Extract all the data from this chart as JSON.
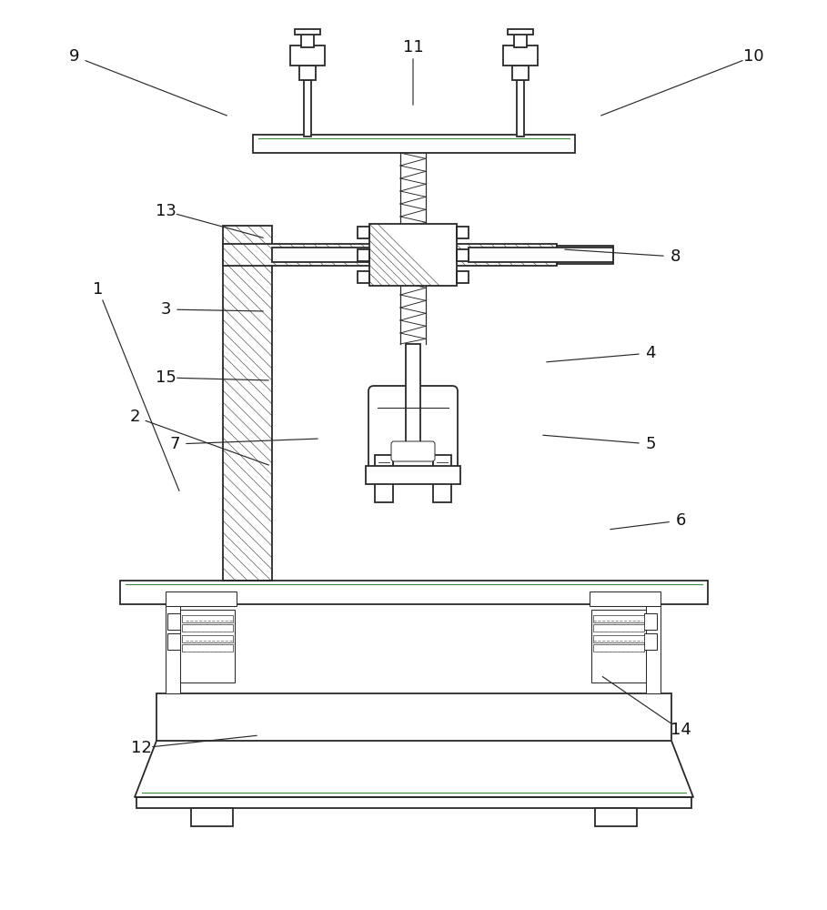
{
  "bg": "#ffffff",
  "lc": "#2a2a2a",
  "gc": "#3a8a3a",
  "lw": 1.3,
  "tlw": 0.75,
  "hlw": 0.55,
  "label_fs": 13,
  "annotations": [
    [
      "9",
      82,
      62,
      252,
      128
    ],
    [
      "10",
      828,
      62,
      658,
      128
    ],
    [
      "11",
      454,
      52,
      454,
      118
    ],
    [
      "13",
      182,
      232,
      292,
      262
    ],
    [
      "8",
      742,
      282,
      618,
      274
    ],
    [
      "3",
      182,
      340,
      292,
      342
    ],
    [
      "15",
      182,
      415,
      298,
      418
    ],
    [
      "4",
      715,
      388,
      598,
      398
    ],
    [
      "7",
      192,
      488,
      352,
      482
    ],
    [
      "5",
      715,
      488,
      594,
      478
    ],
    [
      "2",
      148,
      458,
      298,
      512
    ],
    [
      "6",
      748,
      572,
      668,
      582
    ],
    [
      "1",
      108,
      318,
      198,
      542
    ],
    [
      "12",
      155,
      822,
      285,
      808
    ],
    [
      "14",
      748,
      802,
      660,
      742
    ]
  ]
}
